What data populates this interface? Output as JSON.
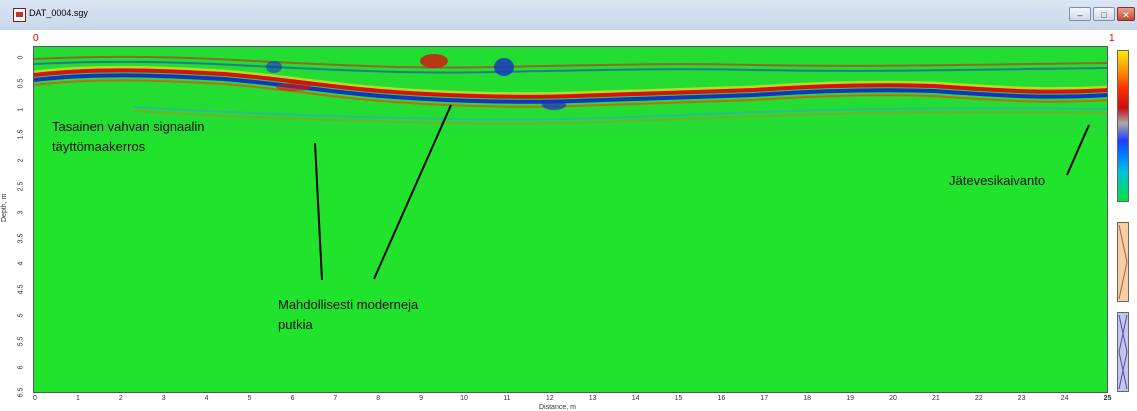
{
  "window": {
    "title": "DAT_0004.sgy",
    "controls": {
      "minimize": "–",
      "maximize": "□",
      "close": "✕"
    }
  },
  "plot": {
    "corner_left": "0",
    "corner_right": "1",
    "y_label": "Depth, m",
    "x_label": "Distance, m",
    "y_ticks": [
      "0",
      "0.5",
      "1",
      "1.5",
      "2",
      "2.5",
      "3",
      "3.5",
      "4",
      "4.5",
      "5",
      "5.5",
      "6",
      "6.5"
    ],
    "x_ticks": [
      "0",
      "1",
      "2",
      "3",
      "4",
      "5",
      "6",
      "7",
      "8",
      "9",
      "10",
      "11",
      "12",
      "13",
      "14",
      "15",
      "16",
      "17",
      "18",
      "19",
      "20",
      "21",
      "22",
      "23",
      "24",
      "25"
    ]
  },
  "annotations": {
    "fill_line1": "Tasainen vahvan signaalin",
    "fill_line2": "täyttömaakerros",
    "pipes_line1": "Mahdollisesti moderneja",
    "pipes_line2": "putkia",
    "sewer": "Jätevesikaivanto"
  },
  "colors": {
    "background_signal": "#1ee62a",
    "reflector_red": "#d81010",
    "reflector_blue": "#1830c8"
  },
  "icons": {
    "app": "sgy-file-icon",
    "colorbar": "amplitude-colorbar"
  }
}
